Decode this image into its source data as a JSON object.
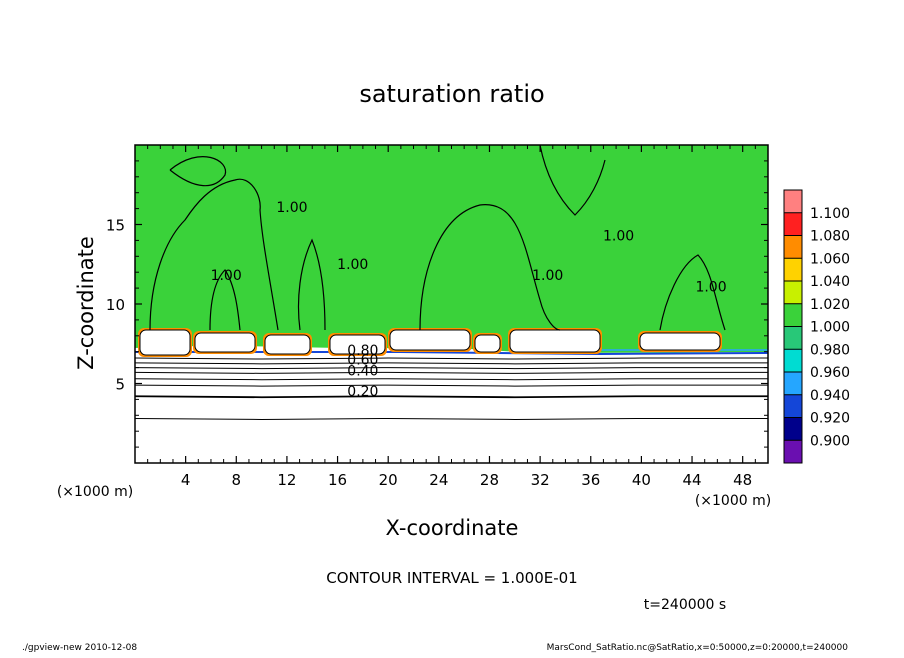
{
  "chart_data": {
    "type": "heatmap",
    "title": "saturation ratio",
    "xlabel": "X-coordinate",
    "ylabel": "Z-coordinate",
    "x_unit_left": "(×1000 m)",
    "x_unit_right": "(×1000 m)",
    "xlim": [
      0,
      50
    ],
    "ylim": [
      0,
      20
    ],
    "x_ticks": [
      4,
      8,
      12,
      16,
      20,
      24,
      28,
      32,
      36,
      40,
      44,
      48
    ],
    "y_ticks": [
      5,
      10,
      15
    ],
    "colorbar": {
      "levels": [
        "0.900",
        "0.920",
        "0.940",
        "0.960",
        "0.980",
        "1.000",
        "1.020",
        "1.040",
        "1.060",
        "1.080",
        "1.100"
      ],
      "colors": [
        "#6a0fb0",
        "#00008b",
        "#1446d8",
        "#25a6ff",
        "#00dcd2",
        "#28c878",
        "#3ad23a",
        "#c8f000",
        "#ffd200",
        "#ff8c00",
        "#ff2020",
        "#ff8080"
      ]
    },
    "contour_labels": [
      {
        "text": "1.00",
        "x": 12.4,
        "z": 15.8
      },
      {
        "text": "1.00",
        "x": 7.2,
        "z": 11.5
      },
      {
        "text": "1.00",
        "x": 17.2,
        "z": 12.2
      },
      {
        "text": "1.00",
        "x": 32.6,
        "z": 11.5
      },
      {
        "text": "1.00",
        "x": 38.2,
        "z": 14.0
      },
      {
        "text": "1.00",
        "x": 45.5,
        "z": 10.8
      },
      {
        "text": "0.80",
        "x": 18.0,
        "z": 6.8
      },
      {
        "text": "0.60",
        "x": 18.0,
        "z": 6.2
      },
      {
        "text": "0.40",
        "x": 18.0,
        "z": 5.5
      },
      {
        "text": "0.20",
        "x": 18.0,
        "z": 4.2
      }
    ],
    "contour_interval_text": "CONTOUR INTERVAL = 1.000E-01",
    "time_text": "t=240000 s"
  },
  "footer": {
    "left": "./gpview-new  2010-12-08",
    "right": "MarsCond_SatRatio.nc@SatRatio,x=0:50000,z=0:20000,t=240000"
  }
}
